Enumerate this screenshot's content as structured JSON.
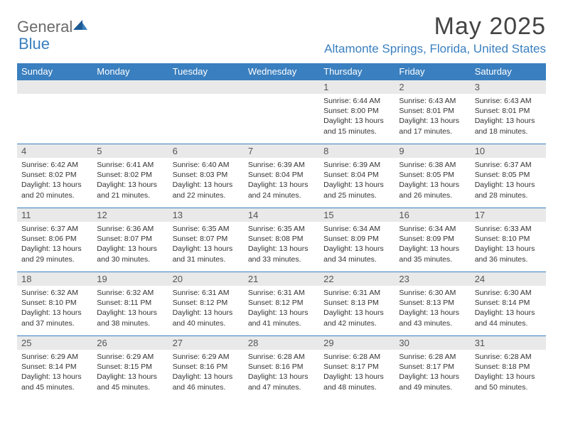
{
  "brand": {
    "general": "General",
    "blue": "Blue"
  },
  "title": "May 2025",
  "location": "Altamonte Springs, Florida, United States",
  "colors": {
    "accent": "#3a7fbf",
    "dayband": "#e9e9e9",
    "text": "#333333"
  },
  "dow": [
    "Sunday",
    "Monday",
    "Tuesday",
    "Wednesday",
    "Thursday",
    "Friday",
    "Saturday"
  ],
  "weeks": [
    [
      null,
      null,
      null,
      null,
      {
        "n": "1",
        "sr": "6:44 AM",
        "ss": "8:00 PM",
        "dl": "13 hours and 15 minutes."
      },
      {
        "n": "2",
        "sr": "6:43 AM",
        "ss": "8:01 PM",
        "dl": "13 hours and 17 minutes."
      },
      {
        "n": "3",
        "sr": "6:43 AM",
        "ss": "8:01 PM",
        "dl": "13 hours and 18 minutes."
      }
    ],
    [
      {
        "n": "4",
        "sr": "6:42 AM",
        "ss": "8:02 PM",
        "dl": "13 hours and 20 minutes."
      },
      {
        "n": "5",
        "sr": "6:41 AM",
        "ss": "8:02 PM",
        "dl": "13 hours and 21 minutes."
      },
      {
        "n": "6",
        "sr": "6:40 AM",
        "ss": "8:03 PM",
        "dl": "13 hours and 22 minutes."
      },
      {
        "n": "7",
        "sr": "6:39 AM",
        "ss": "8:04 PM",
        "dl": "13 hours and 24 minutes."
      },
      {
        "n": "8",
        "sr": "6:39 AM",
        "ss": "8:04 PM",
        "dl": "13 hours and 25 minutes."
      },
      {
        "n": "9",
        "sr": "6:38 AM",
        "ss": "8:05 PM",
        "dl": "13 hours and 26 minutes."
      },
      {
        "n": "10",
        "sr": "6:37 AM",
        "ss": "8:05 PM",
        "dl": "13 hours and 28 minutes."
      }
    ],
    [
      {
        "n": "11",
        "sr": "6:37 AM",
        "ss": "8:06 PM",
        "dl": "13 hours and 29 minutes."
      },
      {
        "n": "12",
        "sr": "6:36 AM",
        "ss": "8:07 PM",
        "dl": "13 hours and 30 minutes."
      },
      {
        "n": "13",
        "sr": "6:35 AM",
        "ss": "8:07 PM",
        "dl": "13 hours and 31 minutes."
      },
      {
        "n": "14",
        "sr": "6:35 AM",
        "ss": "8:08 PM",
        "dl": "13 hours and 33 minutes."
      },
      {
        "n": "15",
        "sr": "6:34 AM",
        "ss": "8:09 PM",
        "dl": "13 hours and 34 minutes."
      },
      {
        "n": "16",
        "sr": "6:34 AM",
        "ss": "8:09 PM",
        "dl": "13 hours and 35 minutes."
      },
      {
        "n": "17",
        "sr": "6:33 AM",
        "ss": "8:10 PM",
        "dl": "13 hours and 36 minutes."
      }
    ],
    [
      {
        "n": "18",
        "sr": "6:32 AM",
        "ss": "8:10 PM",
        "dl": "13 hours and 37 minutes."
      },
      {
        "n": "19",
        "sr": "6:32 AM",
        "ss": "8:11 PM",
        "dl": "13 hours and 38 minutes."
      },
      {
        "n": "20",
        "sr": "6:31 AM",
        "ss": "8:12 PM",
        "dl": "13 hours and 40 minutes."
      },
      {
        "n": "21",
        "sr": "6:31 AM",
        "ss": "8:12 PM",
        "dl": "13 hours and 41 minutes."
      },
      {
        "n": "22",
        "sr": "6:31 AM",
        "ss": "8:13 PM",
        "dl": "13 hours and 42 minutes."
      },
      {
        "n": "23",
        "sr": "6:30 AM",
        "ss": "8:13 PM",
        "dl": "13 hours and 43 minutes."
      },
      {
        "n": "24",
        "sr": "6:30 AM",
        "ss": "8:14 PM",
        "dl": "13 hours and 44 minutes."
      }
    ],
    [
      {
        "n": "25",
        "sr": "6:29 AM",
        "ss": "8:14 PM",
        "dl": "13 hours and 45 minutes."
      },
      {
        "n": "26",
        "sr": "6:29 AM",
        "ss": "8:15 PM",
        "dl": "13 hours and 45 minutes."
      },
      {
        "n": "27",
        "sr": "6:29 AM",
        "ss": "8:16 PM",
        "dl": "13 hours and 46 minutes."
      },
      {
        "n": "28",
        "sr": "6:28 AM",
        "ss": "8:16 PM",
        "dl": "13 hours and 47 minutes."
      },
      {
        "n": "29",
        "sr": "6:28 AM",
        "ss": "8:17 PM",
        "dl": "13 hours and 48 minutes."
      },
      {
        "n": "30",
        "sr": "6:28 AM",
        "ss": "8:17 PM",
        "dl": "13 hours and 49 minutes."
      },
      {
        "n": "31",
        "sr": "6:28 AM",
        "ss": "8:18 PM",
        "dl": "13 hours and 50 minutes."
      }
    ]
  ],
  "labels": {
    "sunrise": "Sunrise: ",
    "sunset": "Sunset: ",
    "daylight": "Daylight: "
  }
}
